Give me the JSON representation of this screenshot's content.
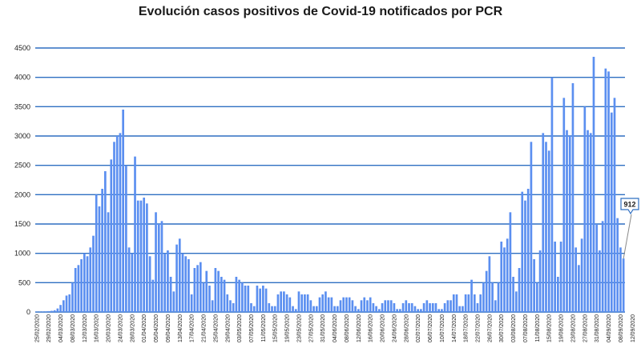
{
  "chart_data": {
    "type": "bar",
    "title": "Evolución casos positivos de Covid-19 notificados por PCR",
    "xlabel": "",
    "ylabel": "",
    "ylim": [
      0,
      4500
    ],
    "yticks": [
      0,
      500,
      1000,
      1500,
      2000,
      2500,
      3000,
      3500,
      4000,
      4500
    ],
    "grid": true,
    "legend": "none",
    "bar_color": "#5b8ff0",
    "grid_color": "#2f6fc2",
    "start_date": "2020-02-25",
    "end_date": "2020-09-14",
    "tick_labels": [
      "25/02/2020",
      "29/02/2020",
      "04/03/2020",
      "08/03/2020",
      "12/03/2020",
      "16/03/2020",
      "20/03/2020",
      "24/03/2020",
      "28/03/2020",
      "01/04/2020",
      "05/04/2020",
      "09/04/2020",
      "13/04/2020",
      "17/04/2020",
      "21/04/2020",
      "25/04/2020",
      "29/04/2020",
      "03/05/2020",
      "07/05/2020",
      "11/05/2020",
      "15/05/2020",
      "19/05/2020",
      "23/05/2020",
      "27/05/2020",
      "31/05/2020",
      "04/06/2020",
      "08/06/2020",
      "12/06/2020",
      "16/06/2020",
      "20/06/2020",
      "24/06/2020",
      "28/06/2020",
      "02/07/2020",
      "06/07/2020",
      "10/07/2020",
      "14/07/2020",
      "18/07/2020",
      "22/07/2020",
      "26/07/2020",
      "30/07/2020",
      "03/08/2020",
      "07/08/2020",
      "11/08/2020",
      "15/08/2020",
      "19/08/2020",
      "23/08/2020",
      "27/08/2020",
      "31/08/2020",
      "04/09/2020",
      "08/09/2020",
      "12/09/2020"
    ],
    "values": [
      5,
      5,
      8,
      10,
      15,
      20,
      30,
      60,
      120,
      200,
      280,
      300,
      500,
      750,
      800,
      900,
      1000,
      950,
      1100,
      1300,
      2000,
      1800,
      2100,
      2400,
      1700,
      2600,
      2900,
      3000,
      3050,
      3450,
      2500,
      1100,
      1000,
      2650,
      1900,
      1900,
      1950,
      1850,
      950,
      550,
      1700,
      1500,
      1550,
      1000,
      1050,
      600,
      350,
      1150,
      1250,
      1000,
      950,
      900,
      300,
      750,
      800,
      850,
      500,
      700,
      450,
      200,
      750,
      700,
      600,
      550,
      300,
      200,
      150,
      600,
      550,
      500,
      450,
      450,
      150,
      100,
      450,
      400,
      450,
      400,
      150,
      100,
      100,
      300,
      350,
      350,
      300,
      250,
      100,
      50,
      350,
      300,
      300,
      300,
      200,
      100,
      100,
      250,
      300,
      350,
      250,
      250,
      100,
      100,
      200,
      250,
      250,
      250,
      200,
      100,
      50,
      200,
      250,
      200,
      250,
      150,
      100,
      50,
      150,
      200,
      200,
      200,
      150,
      50,
      50,
      150,
      200,
      150,
      150,
      100,
      50,
      50,
      150,
      200,
      150,
      150,
      150,
      50,
      50,
      150,
      200,
      200,
      300,
      300,
      100,
      100,
      300,
      300,
      550,
      300,
      150,
      300,
      500,
      700,
      950,
      500,
      200,
      500,
      1200,
      1100,
      1250,
      1700,
      600,
      350,
      750,
      2050,
      1900,
      2100,
      2900,
      900,
      500,
      1050,
      3050,
      2900,
      2750,
      4000,
      1200,
      600,
      1200,
      3650,
      3100,
      3000,
      3900,
      1100,
      800,
      1250,
      3500,
      3100,
      3050,
      4350,
      1500,
      1050,
      1550,
      4150,
      4100,
      3400,
      3650,
      1600,
      1100,
      912
    ],
    "annotations": [
      {
        "label": "912",
        "target": "last"
      }
    ]
  }
}
